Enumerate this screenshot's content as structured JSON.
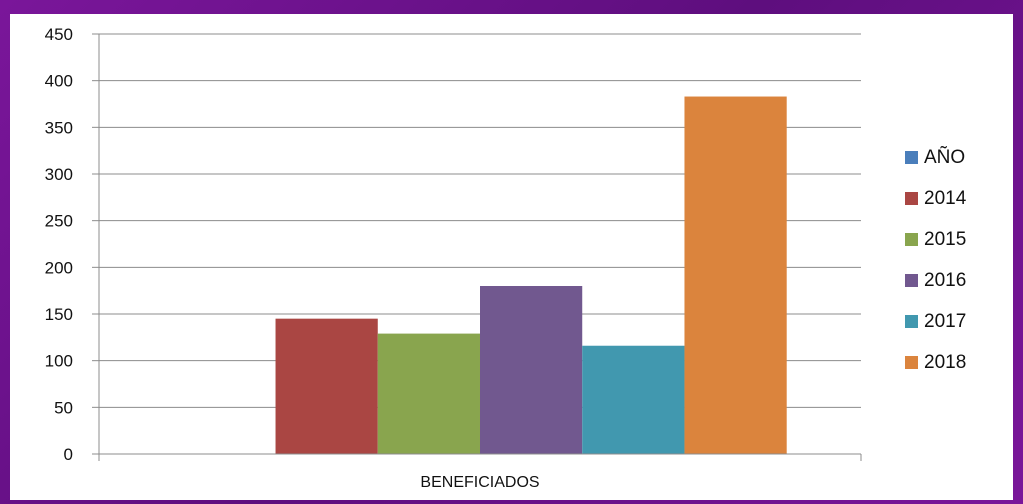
{
  "chart_data": {
    "type": "bar",
    "categories": [
      "BENEFICIADOS"
    ],
    "series": [
      {
        "name": "AÑO",
        "values": [
          0
        ],
        "color": "#4a7ebb"
      },
      {
        "name": "2014",
        "values": [
          145
        ],
        "color": "#aa4643"
      },
      {
        "name": "2015",
        "values": [
          129
        ],
        "color": "#89a54e"
      },
      {
        "name": "2016",
        "values": [
          180
        ],
        "color": "#71588f"
      },
      {
        "name": "2017",
        "values": [
          116
        ],
        "color": "#4198af"
      },
      {
        "name": "2018",
        "values": [
          383
        ],
        "color": "#db843d"
      }
    ],
    "yticks": [
      0,
      50,
      100,
      150,
      200,
      250,
      300,
      350,
      400,
      450
    ],
    "ylim": [
      0,
      450
    ],
    "grid": true,
    "legend_position": "right",
    "title": "",
    "xlabel": "",
    "ylabel": ""
  }
}
